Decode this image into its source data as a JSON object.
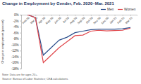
{
  "chart_data": {
    "type": "line",
    "title": "Change in Employment by Gender, Feb. 2020–Mar. 2021",
    "y_label": "Change in employment (percent)",
    "annotations": [
      "Note: Data are for ages 20+.",
      "Source: Bureau of Labor Statistics; CEA calculations."
    ],
    "categories": [
      "Feb-20",
      "Mar-20",
      "Apr-20",
      "May-20",
      "Jun-20",
      "Jul-20",
      "Aug-20",
      "Sep-20",
      "Oct-20",
      "Nov-20",
      "Dec-20",
      "Jan-21",
      "Feb-21",
      "Mar-21"
    ],
    "series": [
      {
        "name": "Men",
        "color": "#2b4e8c",
        "values": [
          0,
          -1,
          -13.5,
          -11,
          -8.5,
          -7.5,
          -6,
          -5.5,
          -5,
          -4.8,
          -4.8,
          -4.8,
          -4.7,
          -4.3
        ]
      },
      {
        "name": "Women",
        "color": "#e0474c",
        "values": [
          0,
          -1,
          -16,
          -13.5,
          -11,
          -9,
          -7,
          -6.8,
          -5.5,
          -5.2,
          -5.4,
          -5.3,
          -5.2,
          -4.5
        ]
      }
    ],
    "ylim": [
      -18,
      0
    ],
    "yticks": [
      {
        "value": 0,
        "label": "0%"
      },
      {
        "value": -2,
        "label": "-2%"
      },
      {
        "value": -4,
        "label": "-4%"
      },
      {
        "value": -6,
        "label": "-6%"
      },
      {
        "value": -8,
        "label": "-8%"
      },
      {
        "value": -10,
        "label": "-10%"
      },
      {
        "value": -12,
        "label": "-12%"
      },
      {
        "value": -14,
        "label": "-14%"
      },
      {
        "value": -16,
        "label": "-16%"
      },
      {
        "value": -18,
        "label": "-18%"
      }
    ],
    "grid": false,
    "legend": "top-right"
  }
}
